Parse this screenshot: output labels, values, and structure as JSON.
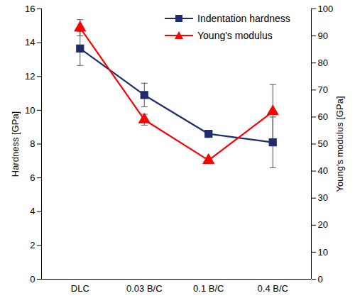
{
  "chart_data": {
    "type": "line",
    "categories": [
      "DLC",
      "0.03 B/C",
      "0.1 B/C",
      "0.4 B/C"
    ],
    "series": [
      {
        "name": "Indentation hardness",
        "color": "#1f2d6e",
        "marker": "square",
        "values": [
          13.65,
          10.9,
          8.6,
          8.1
        ],
        "errors": [
          1.0,
          0.7,
          0.2,
          1.5
        ]
      },
      {
        "name": "Young's modulus",
        "color": "#ff0000",
        "marker": "triangle",
        "axis": "y2",
        "values": [
          93,
          59,
          44,
          62
        ],
        "errors": [
          3,
          2,
          1,
          10
        ]
      }
    ],
    "ylabel": "Hardness [GPa]",
    "y2label": "Young's modulus [GPa]",
    "ylim": [
      0,
      16
    ],
    "yticks": [
      0,
      2,
      4,
      6,
      8,
      10,
      12,
      14,
      16
    ],
    "y2lim": [
      0,
      100
    ],
    "y2ticks": [
      0,
      10,
      20,
      30,
      40,
      50,
      60,
      70,
      80,
      90,
      100
    ],
    "legend": "top-right",
    "grid": false
  }
}
